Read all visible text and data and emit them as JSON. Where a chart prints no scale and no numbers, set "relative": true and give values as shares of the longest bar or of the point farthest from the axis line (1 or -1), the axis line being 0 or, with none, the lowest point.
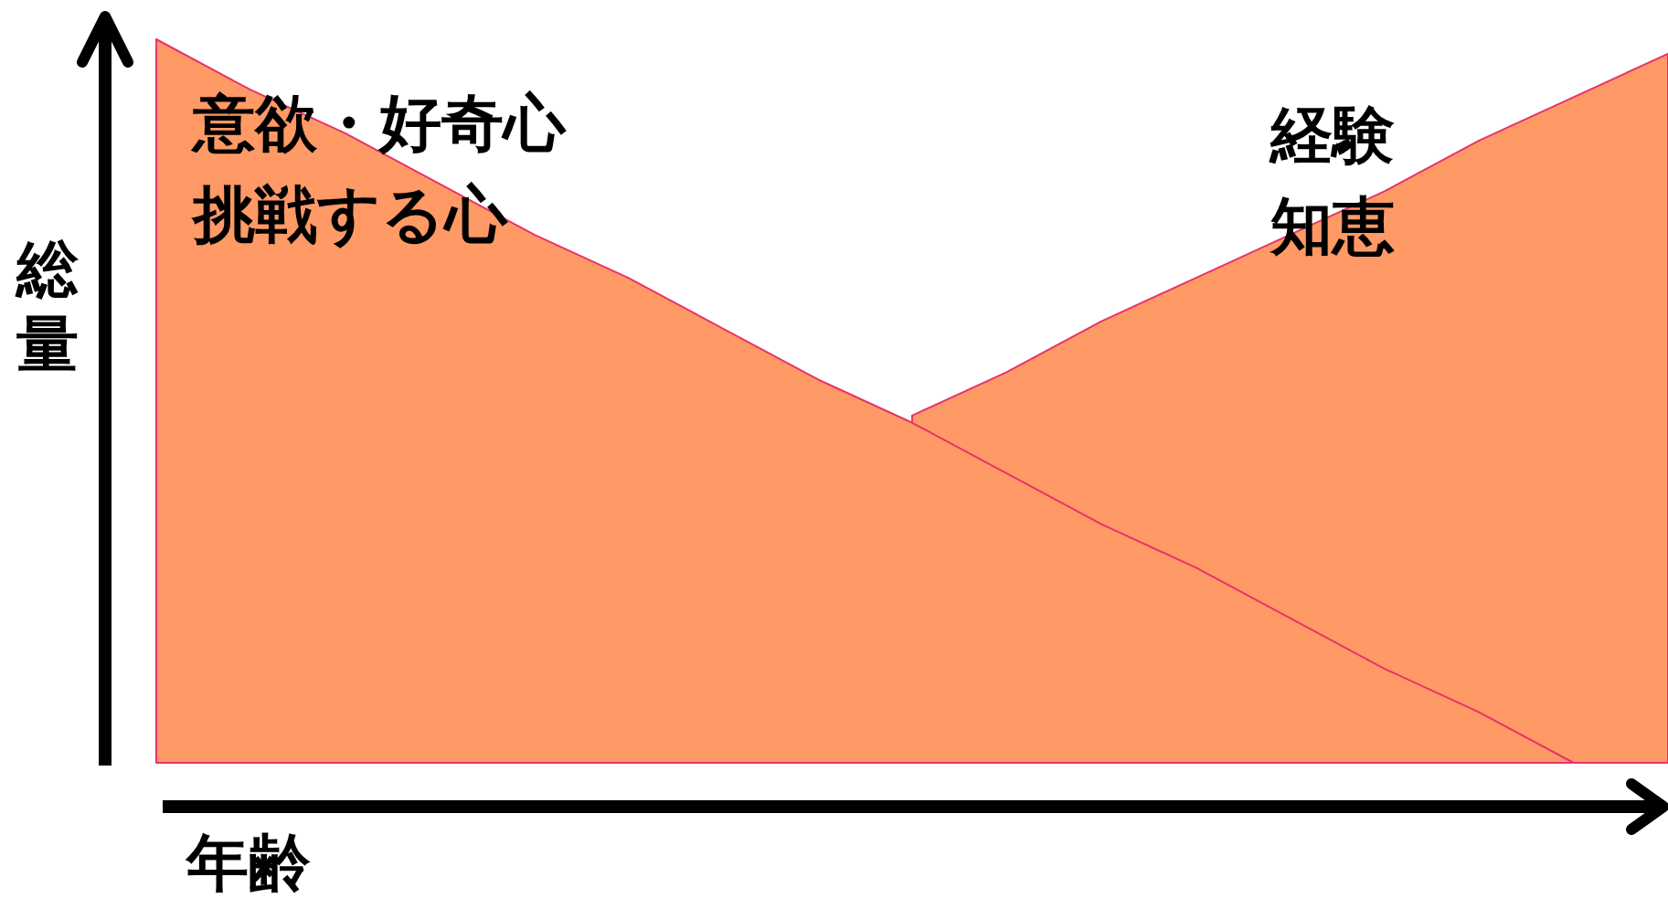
{
  "chart_data": {
    "type": "area",
    "relative": true,
    "xlabel": "年齢",
    "ylabel": "総量",
    "categories": [
      null,
      null,
      null,
      null,
      null,
      null,
      null,
      null,
      null,
      null,
      null,
      null,
      null,
      null,
      null,
      null,
      null
    ],
    "series": [
      {
        "name": "意欲・好奇心挑戦する心",
        "color": "#ff9966",
        "values": [
          1,
          0.93,
          0.87,
          0.8,
          0.73,
          0.67,
          0.6,
          0.53,
          0.47,
          0.4,
          0.33,
          0.27,
          0.2,
          0.13,
          0.07,
          0,
          null
        ]
      },
      {
        "name": "経験知恵",
        "color": "#ff9966",
        "values": [
          null,
          null,
          null,
          null,
          null,
          null,
          null,
          null,
          0.48,
          0.54,
          0.61,
          0.67,
          0.73,
          0.79,
          0.86,
          0.92,
          0.98
        ]
      }
    ]
  }
}
